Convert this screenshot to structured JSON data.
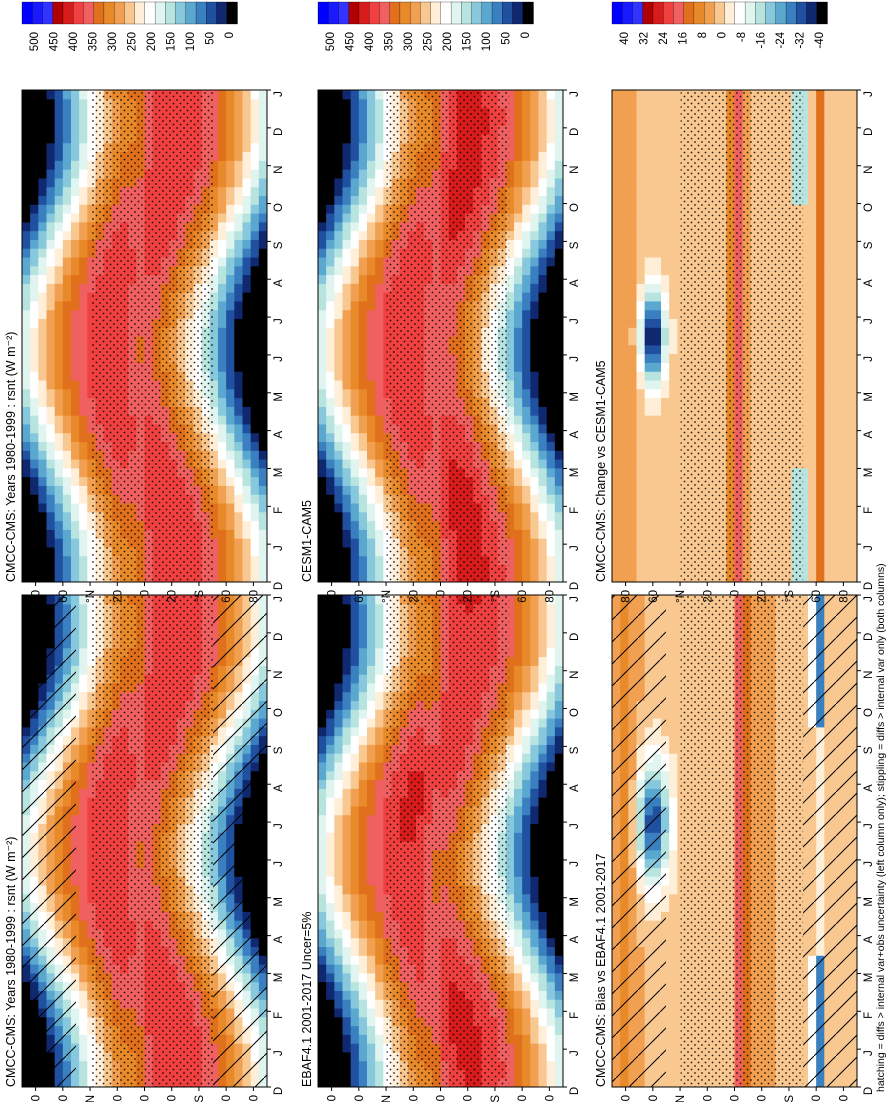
{
  "figure": {
    "footnote": "hatching = diffs > internal var+obs uncertainty (left column only); stippling = diffs > internal var only (both columns)"
  },
  "colors": {
    "abs_scale": [
      "#0000ff",
      "#1a1aff",
      "#3333ff",
      "#b00000",
      "#d81b1b",
      "#f04040",
      "#f06060",
      "#e0701c",
      "#e88a2a",
      "#f0a050",
      "#f8c890",
      "#ffeed8",
      "#ffffff",
      "#e0f4f0",
      "#b8e4e0",
      "#88c8dc",
      "#5aa8d0",
      "#3a80c0",
      "#2050a0",
      "#102870",
      "#000000"
    ],
    "diff_scale": [
      "#0000ff",
      "#1a1aff",
      "#3333ff",
      "#b00000",
      "#d81b1b",
      "#f04040",
      "#f06060",
      "#e0701c",
      "#e88a2a",
      "#f0a050",
      "#f8c890",
      "#ffeed8",
      "#ffffff",
      "#e0f4f0",
      "#b8e4e0",
      "#88c8dc",
      "#5aa8d0",
      "#3a80c0",
      "#2050a0",
      "#102870",
      "#000000"
    ]
  },
  "chart_data": [
    {
      "id": "p1",
      "type": "heatmap",
      "title": "CMCC-CMS: Years 1980-1999 : rsnt (W m⁻²)",
      "months": [
        "D",
        "J",
        "F",
        "M",
        "A",
        "M",
        "J",
        "J",
        "A",
        "S",
        "O",
        "N",
        "D",
        "J"
      ],
      "lat_ticks": [
        "80",
        "60",
        "°N",
        "20",
        "0",
        "20",
        "°S",
        "60",
        "80"
      ],
      "colorbar": [
        "500",
        "450",
        "400",
        "350",
        "300",
        "250",
        "200",
        "150",
        "100",
        "50",
        "0"
      ],
      "field": "abs",
      "hatching": true,
      "stippling": true,
      "ylim": [
        -90,
        90
      ],
      "vlim": [
        0,
        525
      ]
    },
    {
      "id": "p2",
      "type": "heatmap",
      "title": "EBAF4.1 2001-2017 Uncer=5%",
      "months": [
        "D",
        "J",
        "F",
        "M",
        "A",
        "M",
        "J",
        "J",
        "A",
        "S",
        "O",
        "N",
        "D",
        "J"
      ],
      "lat_ticks": [
        "80",
        "60",
        "°N",
        "20",
        "0",
        "20",
        "°S",
        "60",
        "80"
      ],
      "colorbar": [
        "500",
        "450",
        "400",
        "350",
        "300",
        "250",
        "200",
        "150",
        "100",
        "50",
        "0"
      ],
      "field": "abs",
      "hatching": false,
      "stippling": true,
      "ylim": [
        -90,
        90
      ],
      "vlim": [
        0,
        525
      ]
    },
    {
      "id": "p3",
      "type": "heatmap",
      "title": "CMCC-CMS: Bias vs EBAF4.1 2001-2017",
      "months": [
        "D",
        "J",
        "F",
        "M",
        "A",
        "M",
        "J",
        "J",
        "A",
        "S",
        "O",
        "N",
        "D",
        "J"
      ],
      "lat_ticks": [
        "80",
        "60",
        "°N",
        "20",
        "0",
        "20",
        "°S",
        "60",
        "80"
      ],
      "colorbar": [
        "40",
        "32",
        "24",
        "16",
        "8",
        "0",
        "-8",
        "-16",
        "-24",
        "-32",
        "-40"
      ],
      "field": "diff",
      "hatching": true,
      "stippling": true,
      "ylim": [
        -90,
        90
      ],
      "vlim": [
        -44,
        44
      ]
    },
    {
      "id": "p4",
      "type": "heatmap",
      "title": "CMCC-CMS: Years 1980-1999 : rsnt (W m⁻²)",
      "months": [
        "D",
        "J",
        "F",
        "M",
        "A",
        "M",
        "J",
        "J",
        "A",
        "S",
        "O",
        "N",
        "D",
        "J"
      ],
      "lat_ticks": [
        "80",
        "60",
        "°N",
        "20",
        "0",
        "20",
        "°S",
        "60",
        "80"
      ],
      "colorbar": [
        "500",
        "450",
        "400",
        "350",
        "300",
        "250",
        "200",
        "150",
        "100",
        "50",
        "0"
      ],
      "field": "abs",
      "hatching": false,
      "stippling": true,
      "ylim": [
        -90,
        90
      ],
      "vlim": [
        0,
        525
      ]
    },
    {
      "id": "p5",
      "type": "heatmap",
      "title": "CESM1-CAM5",
      "months": [
        "D",
        "J",
        "F",
        "M",
        "A",
        "M",
        "J",
        "J",
        "A",
        "S",
        "O",
        "N",
        "D",
        "J"
      ],
      "lat_ticks": [
        "80",
        "60",
        "°N",
        "20",
        "0",
        "20",
        "°S",
        "60",
        "80"
      ],
      "colorbar": [
        "500",
        "450",
        "400",
        "350",
        "300",
        "250",
        "200",
        "150",
        "100",
        "50",
        "0"
      ],
      "field": "abs",
      "hatching": false,
      "stippling": true,
      "ylim": [
        -90,
        90
      ],
      "vlim": [
        0,
        525
      ]
    },
    {
      "id": "p6",
      "type": "heatmap",
      "title": "CMCC-CMS: Change vs CESM1-CAM5",
      "months": [
        "D",
        "J",
        "F",
        "M",
        "A",
        "M",
        "J",
        "J",
        "A",
        "S",
        "O",
        "N",
        "D",
        "J"
      ],
      "lat_ticks": [
        "80",
        "60",
        "°N",
        "20",
        "0",
        "20",
        "°S",
        "60",
        "80"
      ],
      "colorbar": [
        "40",
        "32",
        "24",
        "16",
        "8",
        "0",
        "-8",
        "-16",
        "-24",
        "-32",
        "-40"
      ],
      "field": "diff",
      "hatching": false,
      "stippling": true,
      "ylim": [
        -90,
        90
      ],
      "vlim": [
        -44,
        44
      ]
    }
  ]
}
